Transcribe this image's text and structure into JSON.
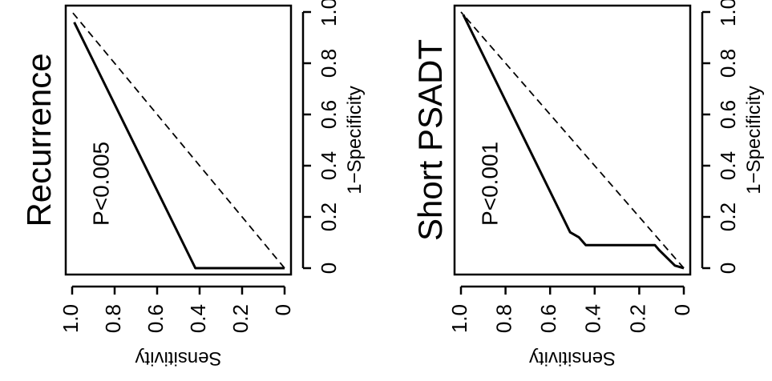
{
  "chart_data": [
    {
      "type": "line",
      "title": "Recurrence",
      "xlabel": "1−Specificity",
      "ylabel": "Sensitivity",
      "annotation": "P<0.005",
      "xlim": [
        0,
        1
      ],
      "ylim": [
        0,
        1
      ],
      "x_ticks": [
        "0",
        "0.2",
        "0.4",
        "0.6",
        "0.8",
        "1.0"
      ],
      "y_ticks": [
        "0",
        "0.2",
        "0.4",
        "0.6",
        "0.8",
        "1.0"
      ],
      "series": [
        {
          "style": "solid",
          "x": [
            0,
            0,
            0.96
          ],
          "y": [
            0,
            0.42,
            0.99
          ]
        },
        {
          "style": "dashed",
          "x": [
            0,
            1
          ],
          "y": [
            0,
            1
          ]
        }
      ]
    },
    {
      "type": "line",
      "title": "Short  PSADT",
      "xlabel": "1−Specificity",
      "ylabel": "Sensitivity",
      "annotation": "P<0.001",
      "xlim": [
        0,
        1
      ],
      "ylim": [
        0,
        1
      ],
      "x_ticks": [
        "0",
        "0.2",
        "0.4",
        "0.6",
        "0.8",
        "1.0"
      ],
      "y_ticks": [
        "0",
        "0.2",
        "0.4",
        "0.6",
        "0.8",
        "1.0"
      ],
      "series": [
        {
          "style": "solid",
          "x": [
            0,
            0.01,
            0.07,
            0.09,
            0.09,
            0.12,
            0.14,
            0.99
          ],
          "y": [
            0,
            0.04,
            0.11,
            0.13,
            0.44,
            0.47,
            0.51,
            0.99
          ]
        },
        {
          "style": "dashed",
          "x": [
            0,
            1
          ],
          "y": [
            0,
            1
          ]
        }
      ]
    }
  ]
}
